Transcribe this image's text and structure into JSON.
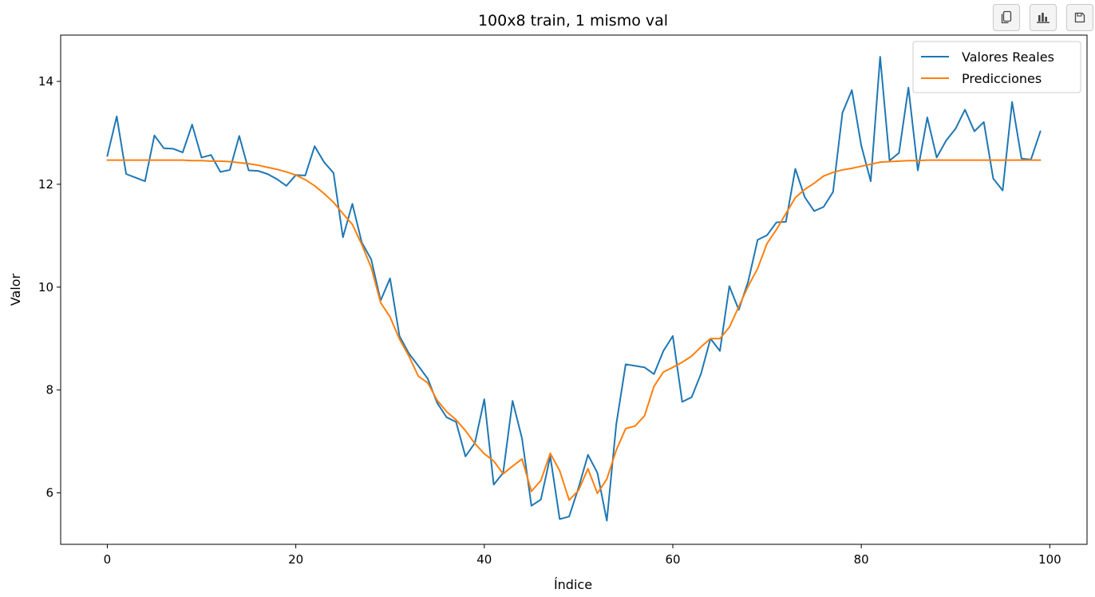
{
  "toolbar": {
    "buttons": [
      {
        "icon": "copy-icon"
      },
      {
        "icon": "bar-chart-icon"
      },
      {
        "icon": "save-icon"
      }
    ]
  },
  "chart_data": {
    "type": "line",
    "title": "100x8 train, 1 mismo val",
    "xlabel": "Índice",
    "ylabel": "Valor",
    "xlim": [
      -4.95,
      103.95
    ],
    "ylim": [
      5.0,
      14.9
    ],
    "xticks": [
      0,
      20,
      40,
      60,
      80,
      100
    ],
    "yticks": [
      6,
      8,
      10,
      12,
      14
    ],
    "grid": false,
    "legend_position": "top-right",
    "series": [
      {
        "name": "Valores Reales",
        "color": "#1f77b4",
        "x": [
          0,
          1,
          2,
          3,
          4,
          5,
          6,
          7,
          8,
          9,
          10,
          11,
          12,
          13,
          14,
          15,
          16,
          17,
          18,
          19,
          20,
          21,
          22,
          23,
          24,
          25,
          26,
          27,
          28,
          29,
          30,
          31,
          32,
          33,
          34,
          35,
          36,
          37,
          38,
          39,
          40,
          41,
          42,
          43,
          44,
          45,
          46,
          47,
          48,
          49,
          50,
          51,
          52,
          53,
          54,
          55,
          56,
          57,
          58,
          59,
          60,
          61,
          62,
          63,
          64,
          65,
          66,
          67,
          68,
          69,
          70,
          71,
          72,
          73,
          74,
          75,
          76,
          77,
          78,
          79,
          80,
          81,
          82,
          83,
          84,
          85,
          86,
          87,
          88,
          89,
          90,
          91,
          92,
          93,
          94,
          95,
          96,
          97,
          98,
          99
        ],
        "values": [
          12.55,
          13.32,
          12.2,
          12.13,
          12.06,
          12.95,
          12.7,
          12.69,
          12.62,
          13.16,
          12.52,
          12.57,
          12.24,
          12.28,
          12.94,
          12.27,
          12.26,
          12.2,
          12.1,
          11.97,
          12.18,
          12.17,
          12.74,
          12.43,
          12.22,
          10.97,
          11.62,
          10.87,
          10.54,
          9.74,
          10.17,
          9.05,
          8.71,
          8.47,
          8.22,
          7.75,
          7.47,
          7.38,
          6.71,
          6.97,
          7.82,
          6.16,
          6.39,
          7.79,
          7.06,
          5.75,
          5.87,
          6.71,
          5.49,
          5.54,
          6.1,
          6.74,
          6.39,
          5.46,
          7.33,
          8.5,
          8.47,
          8.44,
          8.31,
          8.76,
          9.05,
          7.77,
          7.86,
          8.32,
          9.0,
          8.76,
          10.02,
          9.56,
          10.11,
          10.92,
          11.01,
          11.26,
          11.27,
          12.3,
          11.75,
          11.48,
          11.56,
          11.85,
          13.39,
          13.83,
          12.75,
          12.06,
          14.48,
          12.46,
          12.61,
          13.88,
          12.27,
          13.3,
          12.52,
          12.85,
          13.08,
          13.45,
          13.03,
          13.21,
          12.11,
          11.88,
          13.6,
          12.5,
          12.48,
          13.03
        ]
      },
      {
        "name": "Predicciones",
        "color": "#ff7f0e",
        "x": [
          0,
          1,
          2,
          3,
          4,
          5,
          6,
          7,
          8,
          9,
          10,
          11,
          12,
          13,
          14,
          15,
          16,
          17,
          18,
          19,
          20,
          21,
          22,
          23,
          24,
          25,
          26,
          27,
          28,
          29,
          30,
          31,
          32,
          33,
          34,
          35,
          36,
          37,
          38,
          39,
          40,
          41,
          42,
          43,
          44,
          45,
          46,
          47,
          48,
          49,
          50,
          51,
          52,
          53,
          54,
          55,
          56,
          57,
          58,
          59,
          60,
          61,
          62,
          63,
          64,
          65,
          66,
          67,
          68,
          69,
          70,
          71,
          72,
          73,
          74,
          75,
          76,
          77,
          78,
          79,
          80,
          81,
          82,
          83,
          84,
          85,
          86,
          87,
          88,
          89,
          90,
          91,
          92,
          93,
          94,
          95,
          96,
          97,
          98,
          99
        ],
        "values": [
          12.47,
          12.47,
          12.47,
          12.47,
          12.47,
          12.47,
          12.47,
          12.47,
          12.47,
          12.46,
          12.46,
          12.45,
          12.45,
          12.44,
          12.42,
          12.4,
          12.37,
          12.33,
          12.29,
          12.24,
          12.18,
          12.09,
          11.97,
          11.82,
          11.65,
          11.43,
          11.22,
          10.83,
          10.38,
          9.7,
          9.42,
          8.99,
          8.66,
          8.27,
          8.14,
          7.8,
          7.58,
          7.42,
          7.21,
          6.96,
          6.76,
          6.62,
          6.37,
          6.52,
          6.66,
          6.03,
          6.24,
          6.77,
          6.43,
          5.86,
          6.05,
          6.47,
          5.99,
          6.27,
          6.83,
          7.25,
          7.3,
          7.5,
          8.07,
          8.35,
          8.44,
          8.54,
          8.66,
          8.84,
          9.0,
          9.0,
          9.22,
          9.62,
          10.02,
          10.36,
          10.85,
          11.12,
          11.43,
          11.74,
          11.9,
          12.02,
          12.16,
          12.23,
          12.28,
          12.31,
          12.35,
          12.39,
          12.43,
          12.44,
          12.45,
          12.46,
          12.46,
          12.47,
          12.47,
          12.47,
          12.47,
          12.47,
          12.47,
          12.47,
          12.47,
          12.47,
          12.47,
          12.47,
          12.47,
          12.47
        ]
      }
    ]
  }
}
